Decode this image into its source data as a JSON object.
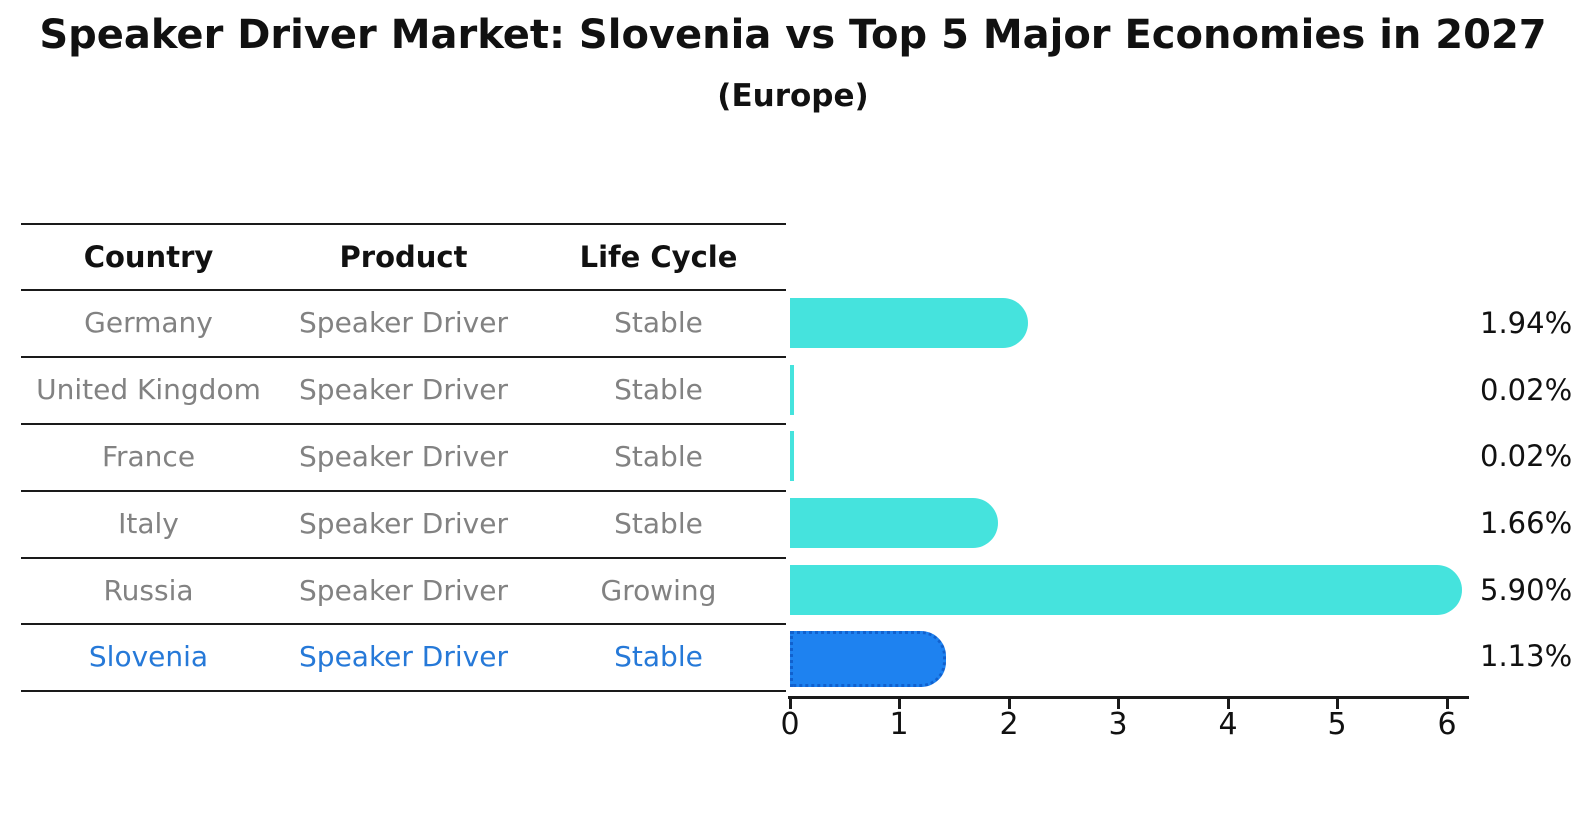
{
  "title": "Speaker Driver Market: Slovenia vs Top 5 Major Economies in 2027",
  "subtitle": "(Europe)",
  "table": {
    "headers": {
      "country": "Country",
      "product": "Product",
      "life_cycle": "Life Cycle"
    },
    "rows": [
      {
        "country": "Germany",
        "product": "Speaker Driver",
        "life_cycle": "Stable",
        "highlight": false
      },
      {
        "country": "United Kingdom",
        "product": "Speaker Driver",
        "life_cycle": "Stable",
        "highlight": false
      },
      {
        "country": "France",
        "product": "Speaker Driver",
        "life_cycle": "Stable",
        "highlight": false
      },
      {
        "country": "Italy",
        "product": "Speaker Driver",
        "life_cycle": "Stable",
        "highlight": false
      },
      {
        "country": "Russia",
        "product": "Speaker Driver",
        "life_cycle": "Growing",
        "highlight": false
      },
      {
        "country": "Slovenia",
        "product": "Speaker Driver",
        "life_cycle": "Stable",
        "highlight": true
      }
    ]
  },
  "chart_data": {
    "type": "bar",
    "orientation": "horizontal",
    "title": "Speaker Driver Market: Slovenia vs Top 5 Major Economies in 2027",
    "subtitle": "(Europe)",
    "categories": [
      "Germany",
      "United Kingdom",
      "France",
      "Italy",
      "Russia",
      "Slovenia"
    ],
    "values": [
      1.94,
      0.02,
      0.02,
      1.66,
      5.9,
      1.13
    ],
    "value_labels": [
      "1.94%",
      "0.02%",
      "0.02%",
      "1.66%",
      "5.90%",
      "1.13%"
    ],
    "xlabel": "",
    "ylabel": "",
    "xlim": [
      0,
      6.2
    ],
    "xticks": [
      0,
      1,
      2,
      3,
      4,
      5,
      6
    ],
    "grid": false,
    "legend": false,
    "highlight_index": 5
  },
  "colors": {
    "bar_cyan": "#45E3DD",
    "bar_blue": "#1E82F0",
    "bar_blue_dark": "#1161CE",
    "blue_text": "#2679D8",
    "row_text": "#828282",
    "axis": "#1a1a1a"
  }
}
